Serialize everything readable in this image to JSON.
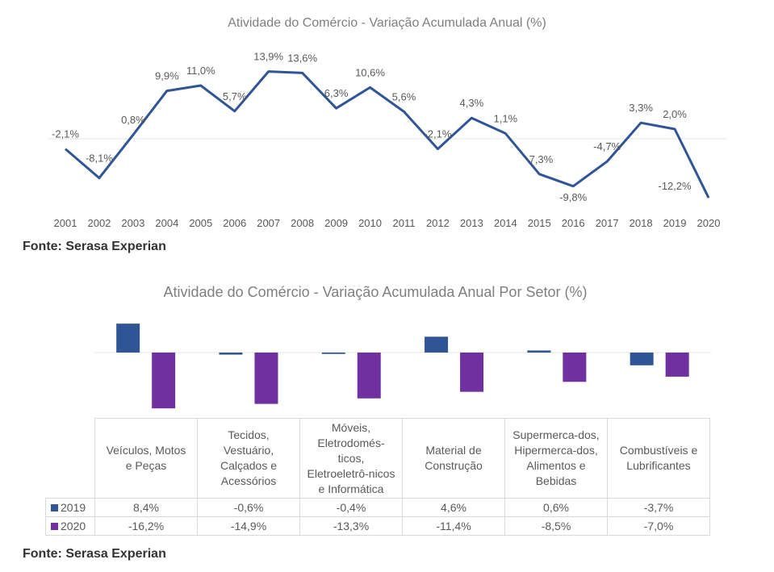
{
  "chart_data": [
    {
      "type": "line",
      "title": "Atividade do Comércio - Variação Acumulada Anual (%)",
      "xlabel": "",
      "ylabel": "",
      "x": [
        "2001",
        "2002",
        "2003",
        "2004",
        "2005",
        "2006",
        "2007",
        "2008",
        "2009",
        "2010",
        "2011",
        "2012",
        "2013",
        "2014",
        "2015",
        "2016",
        "2017",
        "2018",
        "2019",
        "2020"
      ],
      "series": [
        {
          "name": "Variação Acumulada Anual (%)",
          "color": "#2f5597",
          "values": [
            -2.1,
            -8.1,
            0.8,
            9.9,
            11.0,
            5.7,
            13.9,
            13.6,
            6.3,
            10.6,
            5.6,
            -2.1,
            4.3,
            1.1,
            -7.3,
            -9.8,
            -4.7,
            3.3,
            2.0,
            -12.2
          ],
          "labels": [
            "-2,1%",
            "-8,1%",
            "0,8%",
            "9,9%",
            "11,0%",
            "5,7%",
            "13,9%",
            "13,6%",
            "6,3%",
            "10,6%",
            "5,6%",
            "-2,1%",
            "4,3%",
            "1,1%",
            "-7,3%",
            "-9,8%",
            "-4,7%",
            "3,3%",
            "2,0%",
            "-12,2%"
          ]
        }
      ],
      "ylim": [
        -13,
        15
      ],
      "grid": false,
      "legend": "none",
      "source": "Fonte: Serasa Experian"
    },
    {
      "type": "bar",
      "title": "Atividade do Comércio - Variação Acumulada Anual Por Setor (%)",
      "xlabel": "",
      "ylabel": "",
      "categories": [
        "Veículos, Motos e Peças",
        "Tecidos, Vestuário, Calçados e Acessórios",
        "Móveis, Eletrodomés-ticos, Eletroeletrô-nicos e Informática",
        "Material de Construção",
        "Supermerca-dos, Hipermerca-dos, Alimentos e Bebidas",
        "Combustíveis e Lubrificantes"
      ],
      "category_lines": [
        [
          "Veículos, Motos",
          "e Peças"
        ],
        [
          "Tecidos,",
          "Vestuário,",
          "Calçados e",
          "Acessórios"
        ],
        [
          "Móveis,",
          "Eletrodomés-",
          "ticos,",
          "Eletroeletrô-nicos",
          "e Informática"
        ],
        [
          "Material de",
          "Construção"
        ],
        [
          "Supermerca-dos,",
          "Hipermerca-dos,",
          "Alimentos e",
          "Bebidas"
        ],
        [
          "Combustíveis e",
          "Lubrificantes"
        ]
      ],
      "series": [
        {
          "name": "2019",
          "color": "#2f5597",
          "values": [
            8.4,
            -0.6,
            -0.4,
            4.6,
            0.6,
            -3.7
          ],
          "labels": [
            "8,4%",
            "-0,6%",
            "-0,4%",
            "4,6%",
            "0,6%",
            "-3,7%"
          ]
        },
        {
          "name": "2020",
          "color": "#7030a0",
          "values": [
            -16.2,
            -14.9,
            -13.3,
            -11.4,
            -8.5,
            -7.0
          ],
          "labels": [
            "-16,2%",
            "-14,9%",
            "-13,3%",
            "-11,4%",
            "-8,5%",
            "-7,0%"
          ]
        }
      ],
      "ylim": [
        -17,
        9
      ],
      "grid": false,
      "legend": "data-table",
      "source": "Fonte: Serasa Experian"
    }
  ]
}
